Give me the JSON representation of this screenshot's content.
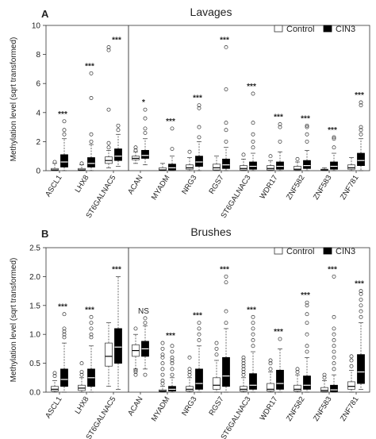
{
  "chart_data": [
    {
      "type": "box",
      "panel_label": "A",
      "title": "Lavages",
      "ylabel": "Methylation level (sqrt transformed)",
      "ylim": [
        0,
        10
      ],
      "yticks": [
        0,
        2,
        4,
        6,
        8,
        10
      ],
      "grid": false,
      "legend_position": "top-right",
      "series": [
        {
          "name": "Control",
          "color": "#ffffff"
        },
        {
          "name": "CIN3",
          "color": "#000000"
        }
      ],
      "separator_after": 2,
      "categories": [
        "ASCL1",
        "LHX8",
        "ST6GALNAC5",
        "ACAN",
        "MYADM",
        "NRG3",
        "RGS7",
        "ST6GALNAC3",
        "WDR17",
        "ZNF582",
        "ZNF583",
        "ZNF781"
      ],
      "significance": [
        "***",
        "***",
        "***",
        "*",
        "***",
        "***",
        "***",
        "***",
        "***",
        "***",
        "***",
        "***"
      ],
      "boxes": [
        {
          "control": {
            "min": 0,
            "q1": 0.02,
            "median": 0.05,
            "q3": 0.15,
            "max": 0.5,
            "outliers": [
              0.6
            ]
          },
          "cin3": {
            "min": 0,
            "q1": 0.25,
            "median": 0.6,
            "q3": 1.1,
            "max": 2.2,
            "outliers": [
              2.5,
              2.8,
              3.4
            ]
          }
        },
        {
          "control": {
            "min": 0,
            "q1": 0.02,
            "median": 0.05,
            "q3": 0.15,
            "max": 0.4,
            "outliers": [
              0.5
            ]
          },
          "cin3": {
            "min": 0,
            "q1": 0.25,
            "median": 0.5,
            "q3": 0.9,
            "max": 1.8,
            "outliers": [
              2.0,
              2.5,
              5.0,
              6.7
            ]
          }
        },
        {
          "control": {
            "min": 0.2,
            "q1": 0.5,
            "median": 0.7,
            "q3": 0.95,
            "max": 1.4,
            "outliers": [
              1.6,
              1.9,
              4.2,
              8.3,
              8.5
            ]
          },
          "cin3": {
            "min": 0.3,
            "q1": 0.7,
            "median": 1.0,
            "q3": 1.5,
            "max": 2.5,
            "outliers": [
              2.8,
              3.1
            ]
          }
        },
        {
          "control": {
            "min": 0.5,
            "q1": 0.75,
            "median": 0.85,
            "q3": 1.0,
            "max": 1.3,
            "outliers": [
              1.4,
              1.6
            ]
          },
          "cin3": {
            "min": 0.4,
            "q1": 0.85,
            "median": 1.05,
            "q3": 1.4,
            "max": 2.2,
            "outliers": [
              2.6,
              2.9,
              3.6,
              4.2
            ]
          }
        },
        {
          "control": {
            "min": 0,
            "q1": 0.02,
            "median": 0.05,
            "q3": 0.2,
            "max": 0.5,
            "outliers": []
          },
          "cin3": {
            "min": 0,
            "q1": 0.05,
            "median": 0.2,
            "q3": 0.45,
            "max": 1.0,
            "outliers": [
              1.5,
              2.9
            ]
          }
        },
        {
          "control": {
            "min": 0,
            "q1": 0.1,
            "median": 0.2,
            "q3": 0.4,
            "max": 0.9,
            "outliers": [
              1.3
            ]
          },
          "cin3": {
            "min": 0,
            "q1": 0.3,
            "median": 0.6,
            "q3": 1.0,
            "max": 2.0,
            "outliers": [
              2.3,
              3.0,
              4.3,
              4.5
            ]
          }
        },
        {
          "control": {
            "min": 0,
            "q1": 0.05,
            "median": 0.2,
            "q3": 0.45,
            "max": 1.0,
            "outliers": []
          },
          "cin3": {
            "min": 0,
            "q1": 0.15,
            "median": 0.4,
            "q3": 0.8,
            "max": 1.6,
            "outliers": [
              2.0,
              2.8,
              3.3,
              5.6,
              8.5
            ]
          }
        },
        {
          "control": {
            "min": 0,
            "q1": 0.05,
            "median": 0.15,
            "q3": 0.35,
            "max": 0.8,
            "outliers": [
              1.1
            ]
          },
          "cin3": {
            "min": 0,
            "q1": 0.1,
            "median": 0.3,
            "q3": 0.6,
            "max": 1.2,
            "outliers": [
              1.6,
              2.0,
              2.5,
              3.3,
              5.3
            ]
          }
        },
        {
          "control": {
            "min": 0,
            "q1": 0.05,
            "median": 0.15,
            "q3": 0.35,
            "max": 0.7,
            "outliers": [
              1.0
            ]
          },
          "cin3": {
            "min": 0,
            "q1": 0.1,
            "median": 0.3,
            "q3": 0.6,
            "max": 1.3,
            "outliers": [
              2.0,
              3.0,
              3.2
            ]
          }
        },
        {
          "control": {
            "min": 0,
            "q1": 0.05,
            "median": 0.1,
            "q3": 0.3,
            "max": 0.6,
            "outliers": [
              0.8
            ]
          },
          "cin3": {
            "min": 0,
            "q1": 0.15,
            "median": 0.35,
            "q3": 0.7,
            "max": 1.4,
            "outliers": [
              2.0,
              2.5,
              3.0,
              3.1
            ]
          }
        },
        {
          "control": {
            "min": 0,
            "q1": 0.02,
            "median": 0.05,
            "q3": 0.1,
            "max": 0.2,
            "outliers": []
          },
          "cin3": {
            "min": 0,
            "q1": 0.1,
            "median": 0.3,
            "q3": 0.6,
            "max": 1.2,
            "outliers": [
              1.6,
              2.2,
              2.3
            ]
          }
        },
        {
          "control": {
            "min": 0,
            "q1": 0.1,
            "median": 0.2,
            "q3": 0.4,
            "max": 0.9,
            "outliers": []
          },
          "cin3": {
            "min": 0,
            "q1": 0.35,
            "median": 0.7,
            "q3": 1.2,
            "max": 2.2,
            "outliers": [
              2.5,
              2.8,
              3.0,
              4.5,
              4.7
            ]
          }
        }
      ]
    },
    {
      "type": "box",
      "panel_label": "B",
      "title": "Brushes",
      "ylabel": "Methylation level (sqrt transformed)",
      "ylim": [
        0,
        2.5
      ],
      "yticks": [
        0,
        0.5,
        1.0,
        1.5,
        2.0,
        2.5
      ],
      "ytick_labels": [
        "0.0",
        "0.5",
        "1.0",
        "1.5",
        "2.0",
        "2.5"
      ],
      "grid": false,
      "legend_position": "top-right",
      "series": [
        {
          "name": "Control",
          "color": "#ffffff"
        },
        {
          "name": "CIN3",
          "color": "#000000"
        }
      ],
      "separator_after": 2,
      "categories": [
        "ASCL1",
        "LHX8",
        "ST6GALNAC5",
        "ACAN",
        "MYADM",
        "NRG3",
        "RGS7",
        "ST6GALNAC3",
        "WDR17",
        "ZNF582",
        "ZNF583",
        "ZNF781"
      ],
      "significance": [
        "***",
        "***",
        "***",
        "NS",
        "***",
        "***",
        "***",
        "***",
        "***",
        "***",
        "***",
        "***"
      ],
      "boxes": [
        {
          "control": {
            "min": 0,
            "q1": 0.02,
            "median": 0.05,
            "q3": 0.1,
            "max": 0.2,
            "outliers": [
              0.28,
              0.33
            ]
          },
          "cin3": {
            "min": 0,
            "q1": 0.1,
            "median": 0.22,
            "q3": 0.4,
            "max": 0.85,
            "outliers": [
              0.95,
              1.0,
              1.05,
              1.1,
              1.35
            ]
          }
        },
        {
          "control": {
            "min": 0,
            "q1": 0.03,
            "median": 0.07,
            "q3": 0.12,
            "max": 0.25,
            "outliers": [
              0.3,
              0.35,
              0.5
            ]
          },
          "cin3": {
            "min": 0,
            "q1": 0.1,
            "median": 0.25,
            "q3": 0.4,
            "max": 0.8,
            "outliers": [
              0.95,
              1.0,
              1.1,
              1.2,
              1.3
            ]
          }
        },
        {
          "control": {
            "min": 0.1,
            "q1": 0.45,
            "median": 0.62,
            "q3": 0.85,
            "max": 1.2,
            "outliers": []
          },
          "cin3": {
            "min": 0.05,
            "q1": 0.5,
            "median": 0.78,
            "q3": 1.1,
            "max": 2.0,
            "outliers": []
          }
        },
        {
          "control": {
            "min": 0.4,
            "q1": 0.62,
            "median": 0.72,
            "q3": 0.82,
            "max": 1.0,
            "outliers": [
              0.3,
              0.35,
              0.38,
              1.1
            ]
          },
          "cin3": {
            "min": 0.4,
            "q1": 0.62,
            "median": 0.75,
            "q3": 0.88,
            "max": 1.15,
            "outliers": [
              0.3,
              1.2,
              1.28
            ]
          }
        },
        {
          "control": {
            "min": 0,
            "q1": 0.01,
            "median": 0.02,
            "q3": 0.04,
            "max": 0.1,
            "outliers": [
              0.15,
              0.2,
              0.3,
              0.4,
              0.5,
              0.6,
              0.65,
              0.75,
              0.85
            ]
          },
          "cin3": {
            "min": 0,
            "q1": 0.02,
            "median": 0.05,
            "q3": 0.1,
            "max": 0.25,
            "outliers": [
              0.3,
              0.4,
              0.5,
              0.55,
              0.6,
              0.7,
              0.8
            ]
          }
        },
        {
          "control": {
            "min": 0,
            "q1": 0.02,
            "median": 0.05,
            "q3": 0.1,
            "max": 0.25,
            "outliers": [
              0.3,
              0.35,
              0.4,
              0.6
            ]
          },
          "cin3": {
            "min": 0,
            "q1": 0.05,
            "median": 0.15,
            "q3": 0.4,
            "max": 0.8,
            "outliers": [
              0.9,
              1.0,
              1.1,
              1.2
            ]
          }
        },
        {
          "control": {
            "min": 0,
            "q1": 0.05,
            "median": 0.12,
            "q3": 0.25,
            "max": 0.55,
            "outliers": [
              0.65,
              0.75,
              0.85
            ]
          },
          "cin3": {
            "min": 0,
            "q1": 0.1,
            "median": 0.28,
            "q3": 0.6,
            "max": 1.1,
            "outliers": [
              1.2,
              1.4,
              1.9,
              2.0
            ]
          }
        },
        {
          "control": {
            "min": 0,
            "q1": 0.02,
            "median": 0.05,
            "q3": 0.1,
            "max": 0.25,
            "outliers": [
              0.3,
              0.35,
              0.4,
              0.45,
              0.5,
              0.55,
              0.6
            ]
          },
          "cin3": {
            "min": 0,
            "q1": 0.05,
            "median": 0.12,
            "q3": 0.32,
            "max": 0.7,
            "outliers": [
              0.8,
              0.9,
              1.0,
              1.1,
              1.2,
              1.3
            ]
          }
        },
        {
          "control": {
            "min": 0,
            "q1": 0.02,
            "median": 0.05,
            "q3": 0.15,
            "max": 0.35,
            "outliers": [
              0.4,
              0.5,
              0.55
            ]
          },
          "cin3": {
            "min": 0,
            "q1": 0.05,
            "median": 0.15,
            "q3": 0.38,
            "max": 0.75,
            "outliers": [
              0.92
            ]
          }
        },
        {
          "control": {
            "min": 0,
            "q1": 0.02,
            "median": 0.05,
            "q3": 0.12,
            "max": 0.3,
            "outliers": [
              0.35,
              0.4
            ]
          },
          "cin3": {
            "min": 0,
            "q1": 0.05,
            "median": 0.12,
            "q3": 0.28,
            "max": 0.6,
            "outliers": [
              0.7,
              0.8,
              1.0,
              1.2,
              1.35,
              1.5,
              1.55
            ]
          }
        },
        {
          "control": {
            "min": 0,
            "q1": 0.01,
            "median": 0.03,
            "q3": 0.08,
            "max": 0.2,
            "outliers": [
              0.25,
              0.3
            ]
          },
          "cin3": {
            "min": 0,
            "q1": 0.01,
            "median": 0.04,
            "q3": 0.12,
            "max": 0.3,
            "outliers": [
              0.4,
              0.5,
              0.6,
              0.7,
              0.8,
              0.9,
              1.0,
              1.1,
              1.3,
              2.0
            ]
          }
        },
        {
          "control": {
            "min": 0,
            "q1": 0.05,
            "median": 0.1,
            "q3": 0.18,
            "max": 0.38,
            "outliers": [
              0.45,
              0.55,
              0.62
            ]
          },
          "cin3": {
            "min": 0.05,
            "q1": 0.15,
            "median": 0.35,
            "q3": 0.65,
            "max": 1.2,
            "outliers": [
              1.3,
              1.4,
              1.5,
              1.6,
              1.7,
              1.75
            ]
          }
        }
      ]
    }
  ]
}
